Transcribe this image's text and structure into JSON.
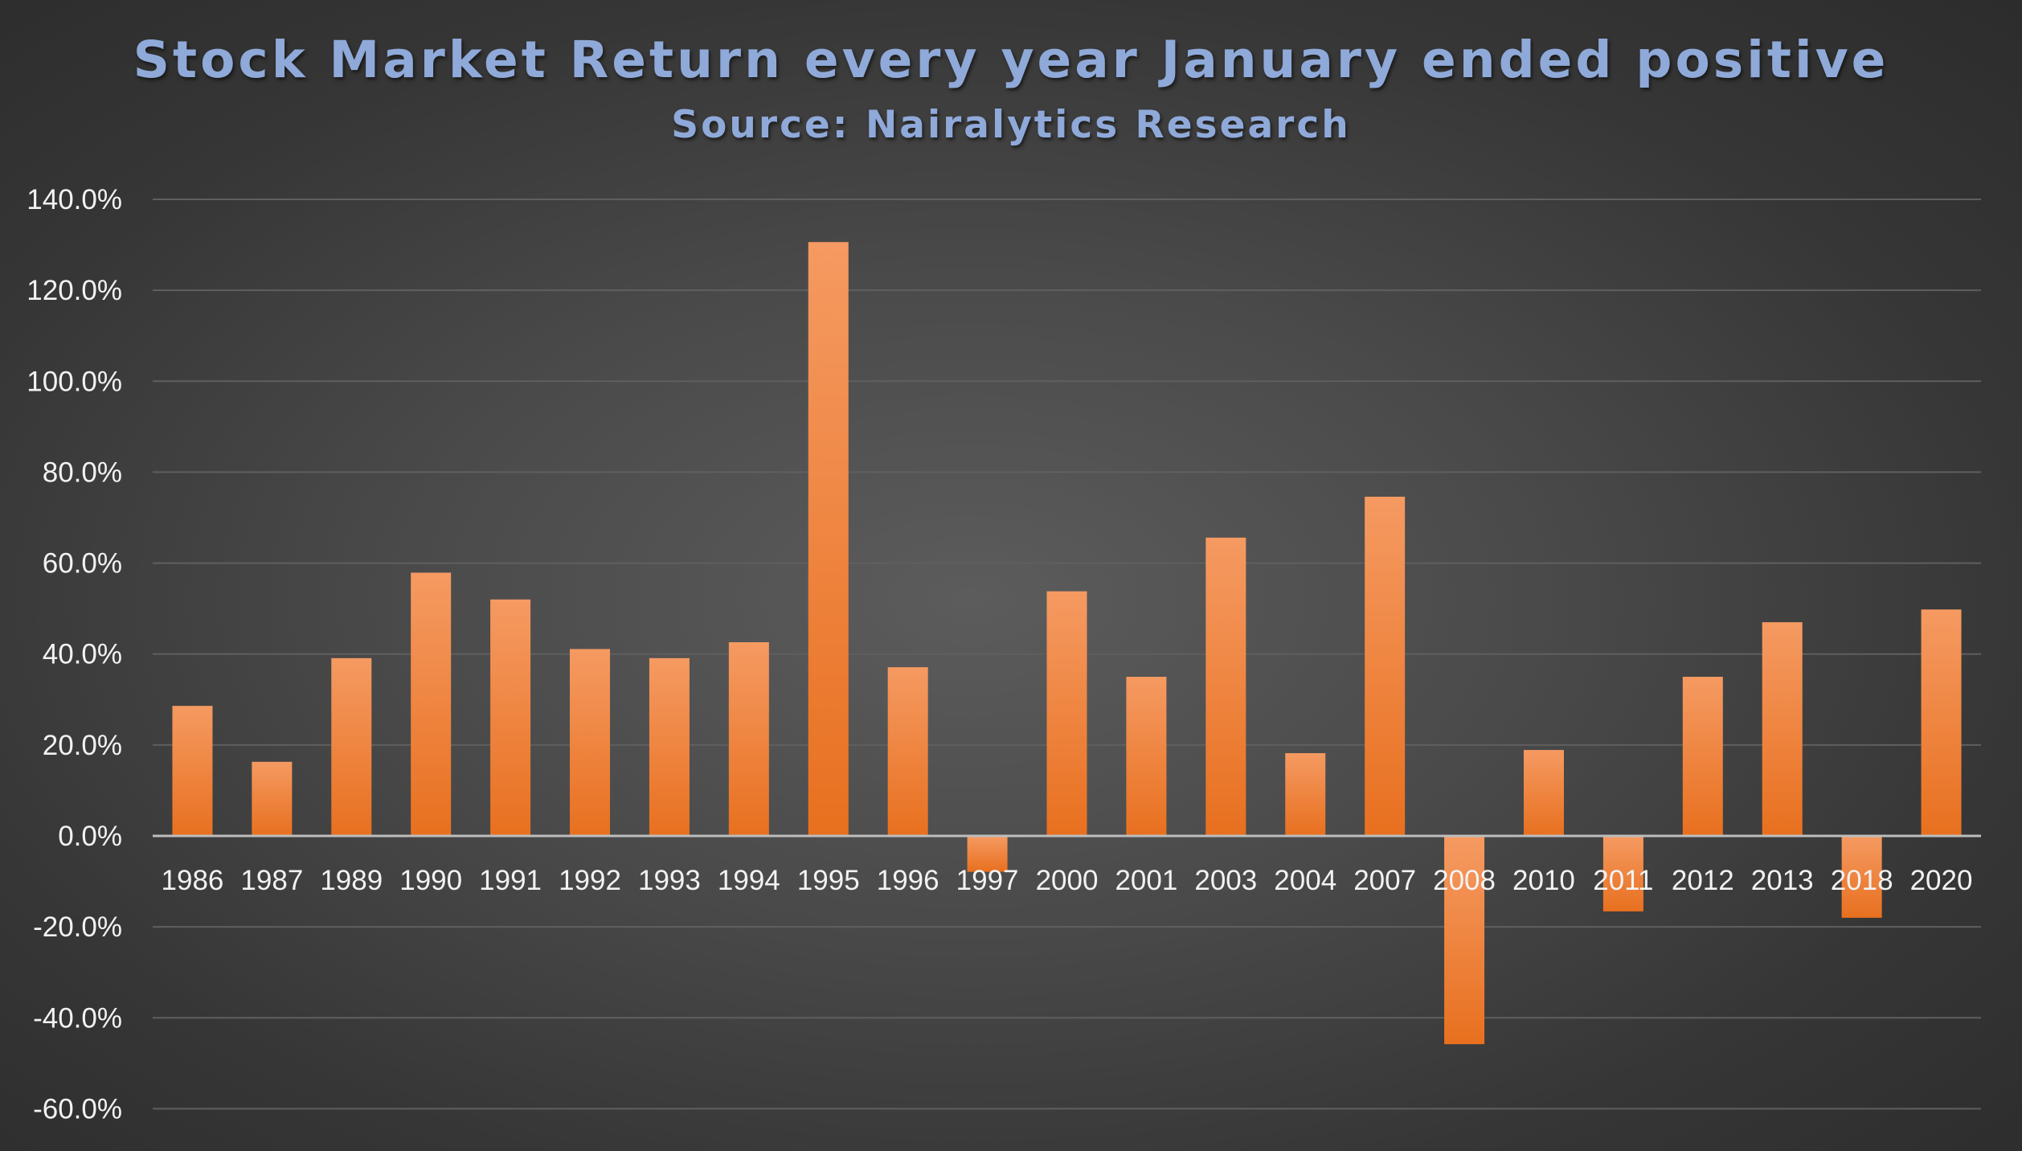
{
  "chart_data": {
    "type": "bar",
    "title": "Stock Market Return every year January ended positive",
    "subtitle": "Source: Nairalytics Research",
    "xlabel": "",
    "ylabel": "",
    "categories": [
      "1986",
      "1987",
      "1989",
      "1990",
      "1991",
      "1992",
      "1993",
      "1994",
      "1995",
      "1996",
      "1997",
      "2000",
      "2001",
      "2003",
      "2004",
      "2007",
      "2008",
      "2010",
      "2011",
      "2012",
      "2013",
      "2018",
      "2020"
    ],
    "values": [
      28.6,
      16.3,
      39.1,
      57.9,
      52.0,
      41.1,
      39.1,
      42.6,
      130.6,
      37.1,
      -7.9,
      53.8,
      35.0,
      65.6,
      18.2,
      74.6,
      -45.8,
      18.9,
      -16.6,
      35.0,
      47.0,
      -18.0,
      49.8
    ],
    "ylim": [
      -60,
      140
    ],
    "y_ticks": [
      "140.0%",
      "120.0%",
      "100.0%",
      "80.0%",
      "60.0%",
      "40.0%",
      "20.0%",
      "0.0%",
      "-20.0%",
      "-40.0%",
      "-60.0%"
    ],
    "y_tick_values": [
      140,
      120,
      100,
      80,
      60,
      40,
      20,
      0,
      -20,
      -40,
      -60
    ],
    "grid": true,
    "legend": "none",
    "colors": {
      "bar_top": "#f59a62",
      "bar_bottom": "#e8701f",
      "title": "#8fa9d9",
      "gridline": "#5f5f5f",
      "zero_line": "#bdbdbd",
      "tick_text": "#f2f2f2"
    }
  }
}
